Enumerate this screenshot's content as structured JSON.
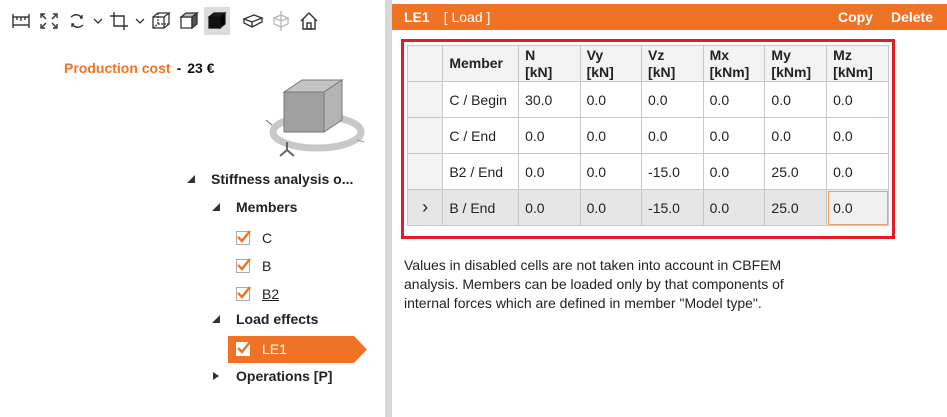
{
  "production_cost": {
    "label": "Production cost",
    "separator": "-",
    "value": "23 €"
  },
  "tree": {
    "root": "Stiffness analysis o...",
    "members_label": "Members",
    "members": [
      "C",
      "B",
      "B2"
    ],
    "load_effects_label": "Load effects",
    "load_effects": [
      "LE1"
    ],
    "operations_label": "Operations [P]"
  },
  "panel": {
    "title": "LE1",
    "subtitle": "[ Load ]",
    "copy_label": "Copy",
    "delete_label": "Delete"
  },
  "table": {
    "columns": [
      {
        "name": "Member",
        "unit": ""
      },
      {
        "name": "N",
        "unit": "[kN]"
      },
      {
        "name": "Vy",
        "unit": "[kN]"
      },
      {
        "name": "Vz",
        "unit": "[kN]"
      },
      {
        "name": "Mx",
        "unit": "[kNm]"
      },
      {
        "name": "My",
        "unit": "[kNm]"
      },
      {
        "name": "Mz",
        "unit": "[kNm]"
      }
    ],
    "rows": [
      [
        "C / Begin",
        "30.0",
        "0.0",
        "0.0",
        "0.0",
        "0.0",
        "0.0"
      ],
      [
        "C / End",
        "0.0",
        "0.0",
        "0.0",
        "0.0",
        "0.0",
        "0.0"
      ],
      [
        "B2 / End",
        "0.0",
        "0.0",
        "-15.0",
        "0.0",
        "25.0",
        "0.0"
      ],
      [
        "B / End",
        "0.0",
        "0.0",
        "-15.0",
        "0.0",
        "25.0",
        "0.0"
      ]
    ],
    "selected_row_marker": "›"
  },
  "note": "Values in disabled cells are not taken into account in CBFEM analysis. Members can be loaded only by that components of internal forces which are defined in member \"Model type\".",
  "colors": {
    "accent": "#f07325",
    "highlight_border": "#e31b23"
  },
  "icons": [
    "ruler-icon",
    "fit-icon",
    "rotate-icon",
    "chevron-down-icon",
    "crop-icon",
    "chevron-down-icon",
    "wireframe-cube-icon",
    "shaded-cube-icon",
    "solid-cube-icon",
    "section-icon",
    "plane-icon",
    "home-icon"
  ]
}
